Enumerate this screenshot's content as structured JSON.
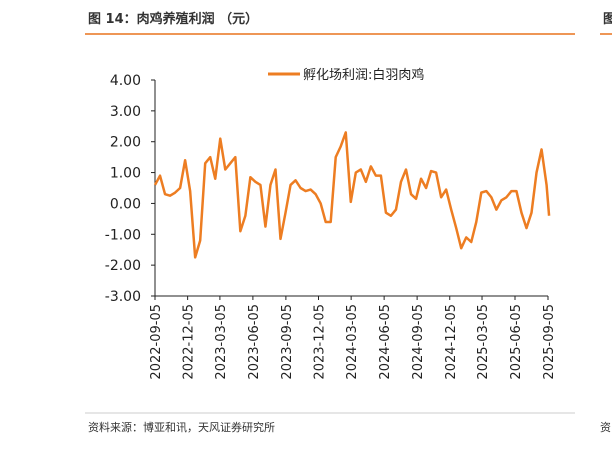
{
  "header": {
    "title": "图 14：肉鸡养殖利润 （元）",
    "right_fragment": "图"
  },
  "footer": {
    "source": "资料来源：博亚和讯，天风证券研究所",
    "right_fragment": "资"
  },
  "chart_data": {
    "type": "line",
    "x": [
      "2022-09-05",
      "2022-09-19",
      "2022-10-03",
      "2022-10-17",
      "2022-10-31",
      "2022-11-14",
      "2022-11-28",
      "2022-12-12",
      "2022-12-26",
      "2023-01-09",
      "2023-01-23",
      "2023-02-06",
      "2023-02-20",
      "2023-03-06",
      "2023-03-20",
      "2023-04-03",
      "2023-04-17",
      "2023-05-01",
      "2023-05-15",
      "2023-05-29",
      "2023-06-12",
      "2023-06-26",
      "2023-07-10",
      "2023-07-24",
      "2023-08-07",
      "2023-08-21",
      "2023-09-04",
      "2023-09-18",
      "2023-10-02",
      "2023-10-16",
      "2023-10-30",
      "2023-11-13",
      "2023-11-27",
      "2023-12-11",
      "2023-12-25",
      "2024-01-08",
      "2024-01-22",
      "2024-02-05",
      "2024-02-19",
      "2024-03-04",
      "2024-03-18",
      "2024-04-01",
      "2024-04-15",
      "2024-04-29",
      "2024-05-13",
      "2024-05-27",
      "2024-06-10",
      "2024-06-24",
      "2024-07-08",
      "2024-07-22",
      "2024-08-05",
      "2024-08-19",
      "2024-09-02",
      "2024-09-16",
      "2024-09-30",
      "2024-10-14",
      "2024-10-28",
      "2024-11-11",
      "2024-11-25",
      "2024-12-09",
      "2024-12-23",
      "2025-01-06",
      "2025-01-20",
      "2025-02-03",
      "2025-02-17",
      "2025-03-03",
      "2025-03-17",
      "2025-03-31",
      "2025-04-14",
      "2025-04-28",
      "2025-05-12",
      "2025-05-26",
      "2025-06-09",
      "2025-06-23",
      "2025-07-07",
      "2025-07-21",
      "2025-08-04",
      "2025-08-18",
      "2025-09-01",
      "2025-09-08"
    ],
    "series": [
      {
        "name": "孵化场利润:白羽肉鸡",
        "color": "#ed7d22",
        "values": [
          0.6,
          0.9,
          0.3,
          0.25,
          0.35,
          0.5,
          1.4,
          0.4,
          -1.75,
          -1.2,
          1.3,
          1.5,
          0.8,
          2.1,
          1.1,
          1.3,
          1.5,
          -0.9,
          -0.4,
          0.85,
          0.7,
          0.6,
          -0.75,
          0.6,
          1.1,
          -1.15,
          -0.3,
          0.6,
          0.75,
          0.5,
          0.4,
          0.45,
          0.3,
          0.0,
          -0.6,
          -0.6,
          1.5,
          1.85,
          2.3,
          0.05,
          1.0,
          1.1,
          0.7,
          1.2,
          0.9,
          0.9,
          -0.3,
          -0.4,
          -0.2,
          0.7,
          1.1,
          0.3,
          0.15,
          0.8,
          0.5,
          1.05,
          1.0,
          0.2,
          0.45,
          -0.2,
          -0.8,
          -1.45,
          -1.1,
          -1.25,
          -0.6,
          0.35,
          0.4,
          0.2,
          -0.2,
          0.1,
          0.2,
          0.4,
          0.4,
          -0.3,
          -0.8,
          -0.3,
          1.0,
          1.75,
          0.6,
          -0.4
        ]
      }
    ],
    "xlim": [
      "2022-09-05",
      "2025-09-05"
    ],
    "xticks": [
      "2022-09-05",
      "2022-12-05",
      "2023-03-05",
      "2023-06-05",
      "2023-09-05",
      "2023-12-05",
      "2024-03-05",
      "2024-06-05",
      "2024-09-05",
      "2024-12-05",
      "2025-03-05",
      "2025-06-05",
      "2025-09-05"
    ],
    "ylim": [
      -3,
      4
    ],
    "yticks": [
      {
        "value": 4,
        "label": "4.00"
      },
      {
        "value": 3,
        "label": "3.00"
      },
      {
        "value": 2,
        "label": "2.00"
      },
      {
        "value": 1,
        "label": "1.00"
      },
      {
        "value": 0,
        "label": "0.00"
      },
      {
        "value": -1,
        "label": "-1.00"
      },
      {
        "value": -2,
        "label": "-2.00"
      },
      {
        "value": -3,
        "label": "-3.00"
      }
    ],
    "legend": "top"
  }
}
